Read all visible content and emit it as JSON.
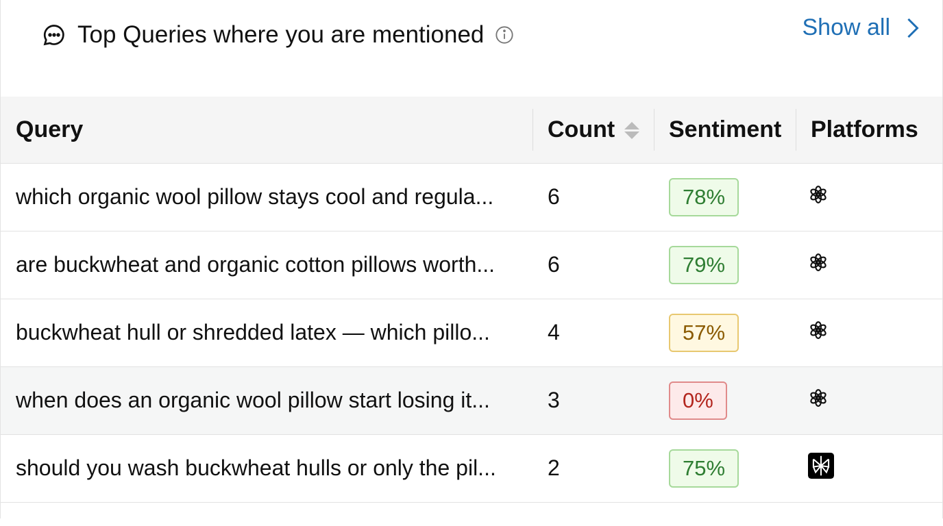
{
  "header": {
    "title": "Top Queries where you are mentioned",
    "show_all": "Show all"
  },
  "columns": {
    "query": "Query",
    "count": "Count",
    "sentiment": "Sentiment",
    "platforms": "Platforms"
  },
  "rows": [
    {
      "query": "which organic wool pillow stays cool and regula...",
      "count": "6",
      "sentiment": "78%",
      "level": "pos",
      "platform": "chatgpt-icon"
    },
    {
      "query": "are buckwheat and organic cotton pillows worth...",
      "count": "6",
      "sentiment": "79%",
      "level": "pos",
      "platform": "chatgpt-icon"
    },
    {
      "query": "buckwheat hull or shredded latex — which pillo...",
      "count": "4",
      "sentiment": "57%",
      "level": "mid",
      "platform": "chatgpt-icon"
    },
    {
      "query": "when does an organic wool pillow start losing it...",
      "count": "3",
      "sentiment": "0%",
      "level": "neg",
      "platform": "chatgpt-icon"
    },
    {
      "query": "should you wash buckwheat hulls or only the pil...",
      "count": "2",
      "sentiment": "75%",
      "level": "pos",
      "platform": "perplexity-icon"
    }
  ],
  "colors": {
    "link": "#1f6fb5",
    "positive": "#2e7d32",
    "neutral": "#8a5a00",
    "negative": "#b3261e"
  }
}
